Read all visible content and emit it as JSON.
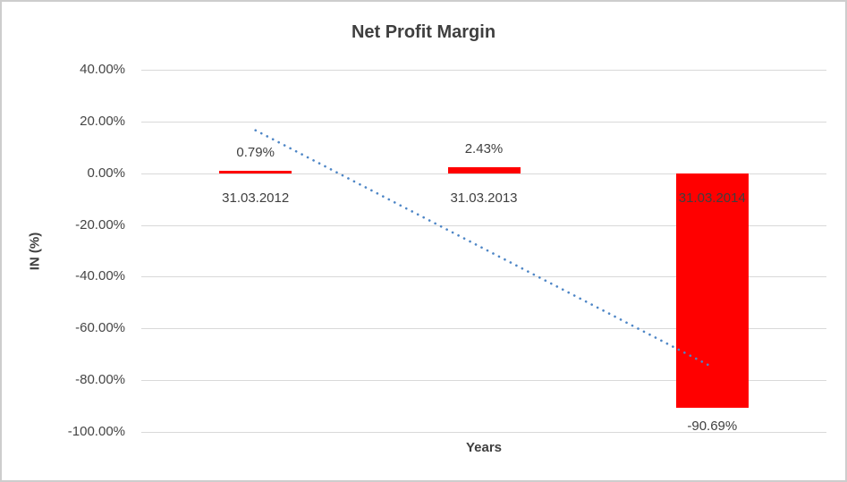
{
  "frame": {
    "background": "#ffffff",
    "border_color": "#cdcdcd"
  },
  "chart_data": {
    "type": "bar",
    "title": "Net Profit Margin",
    "xlabel": "Years",
    "ylabel": "IN (%)",
    "categories": [
      "31.03.2012",
      "31.03.2013",
      "31.03.2014"
    ],
    "values": [
      0.79,
      2.43,
      -90.69
    ],
    "data_labels": [
      "0.79%",
      "2.43%",
      "-90.69%"
    ],
    "yticks": [
      "40.00%",
      "20.00%",
      "0.00%",
      "-20.00%",
      "-40.00%",
      "-60.00%",
      "-80.00%",
      "-100.00%"
    ],
    "ytick_values": [
      40,
      20,
      0,
      -20,
      -40,
      -60,
      -80,
      -100
    ],
    "ylim": [
      -100,
      40
    ],
    "grid": true,
    "legend_position": "none",
    "bar_color": "#ff0000",
    "gridline_color": "#d9d9d9",
    "text_color": "#3f3f3f",
    "trendline": {
      "type": "linear",
      "style": "dotted",
      "color": "#4e86c6",
      "start": {
        "category_index": 0,
        "value": 16.6
      },
      "end": {
        "category_index": 2,
        "value": -74.9
      }
    }
  }
}
